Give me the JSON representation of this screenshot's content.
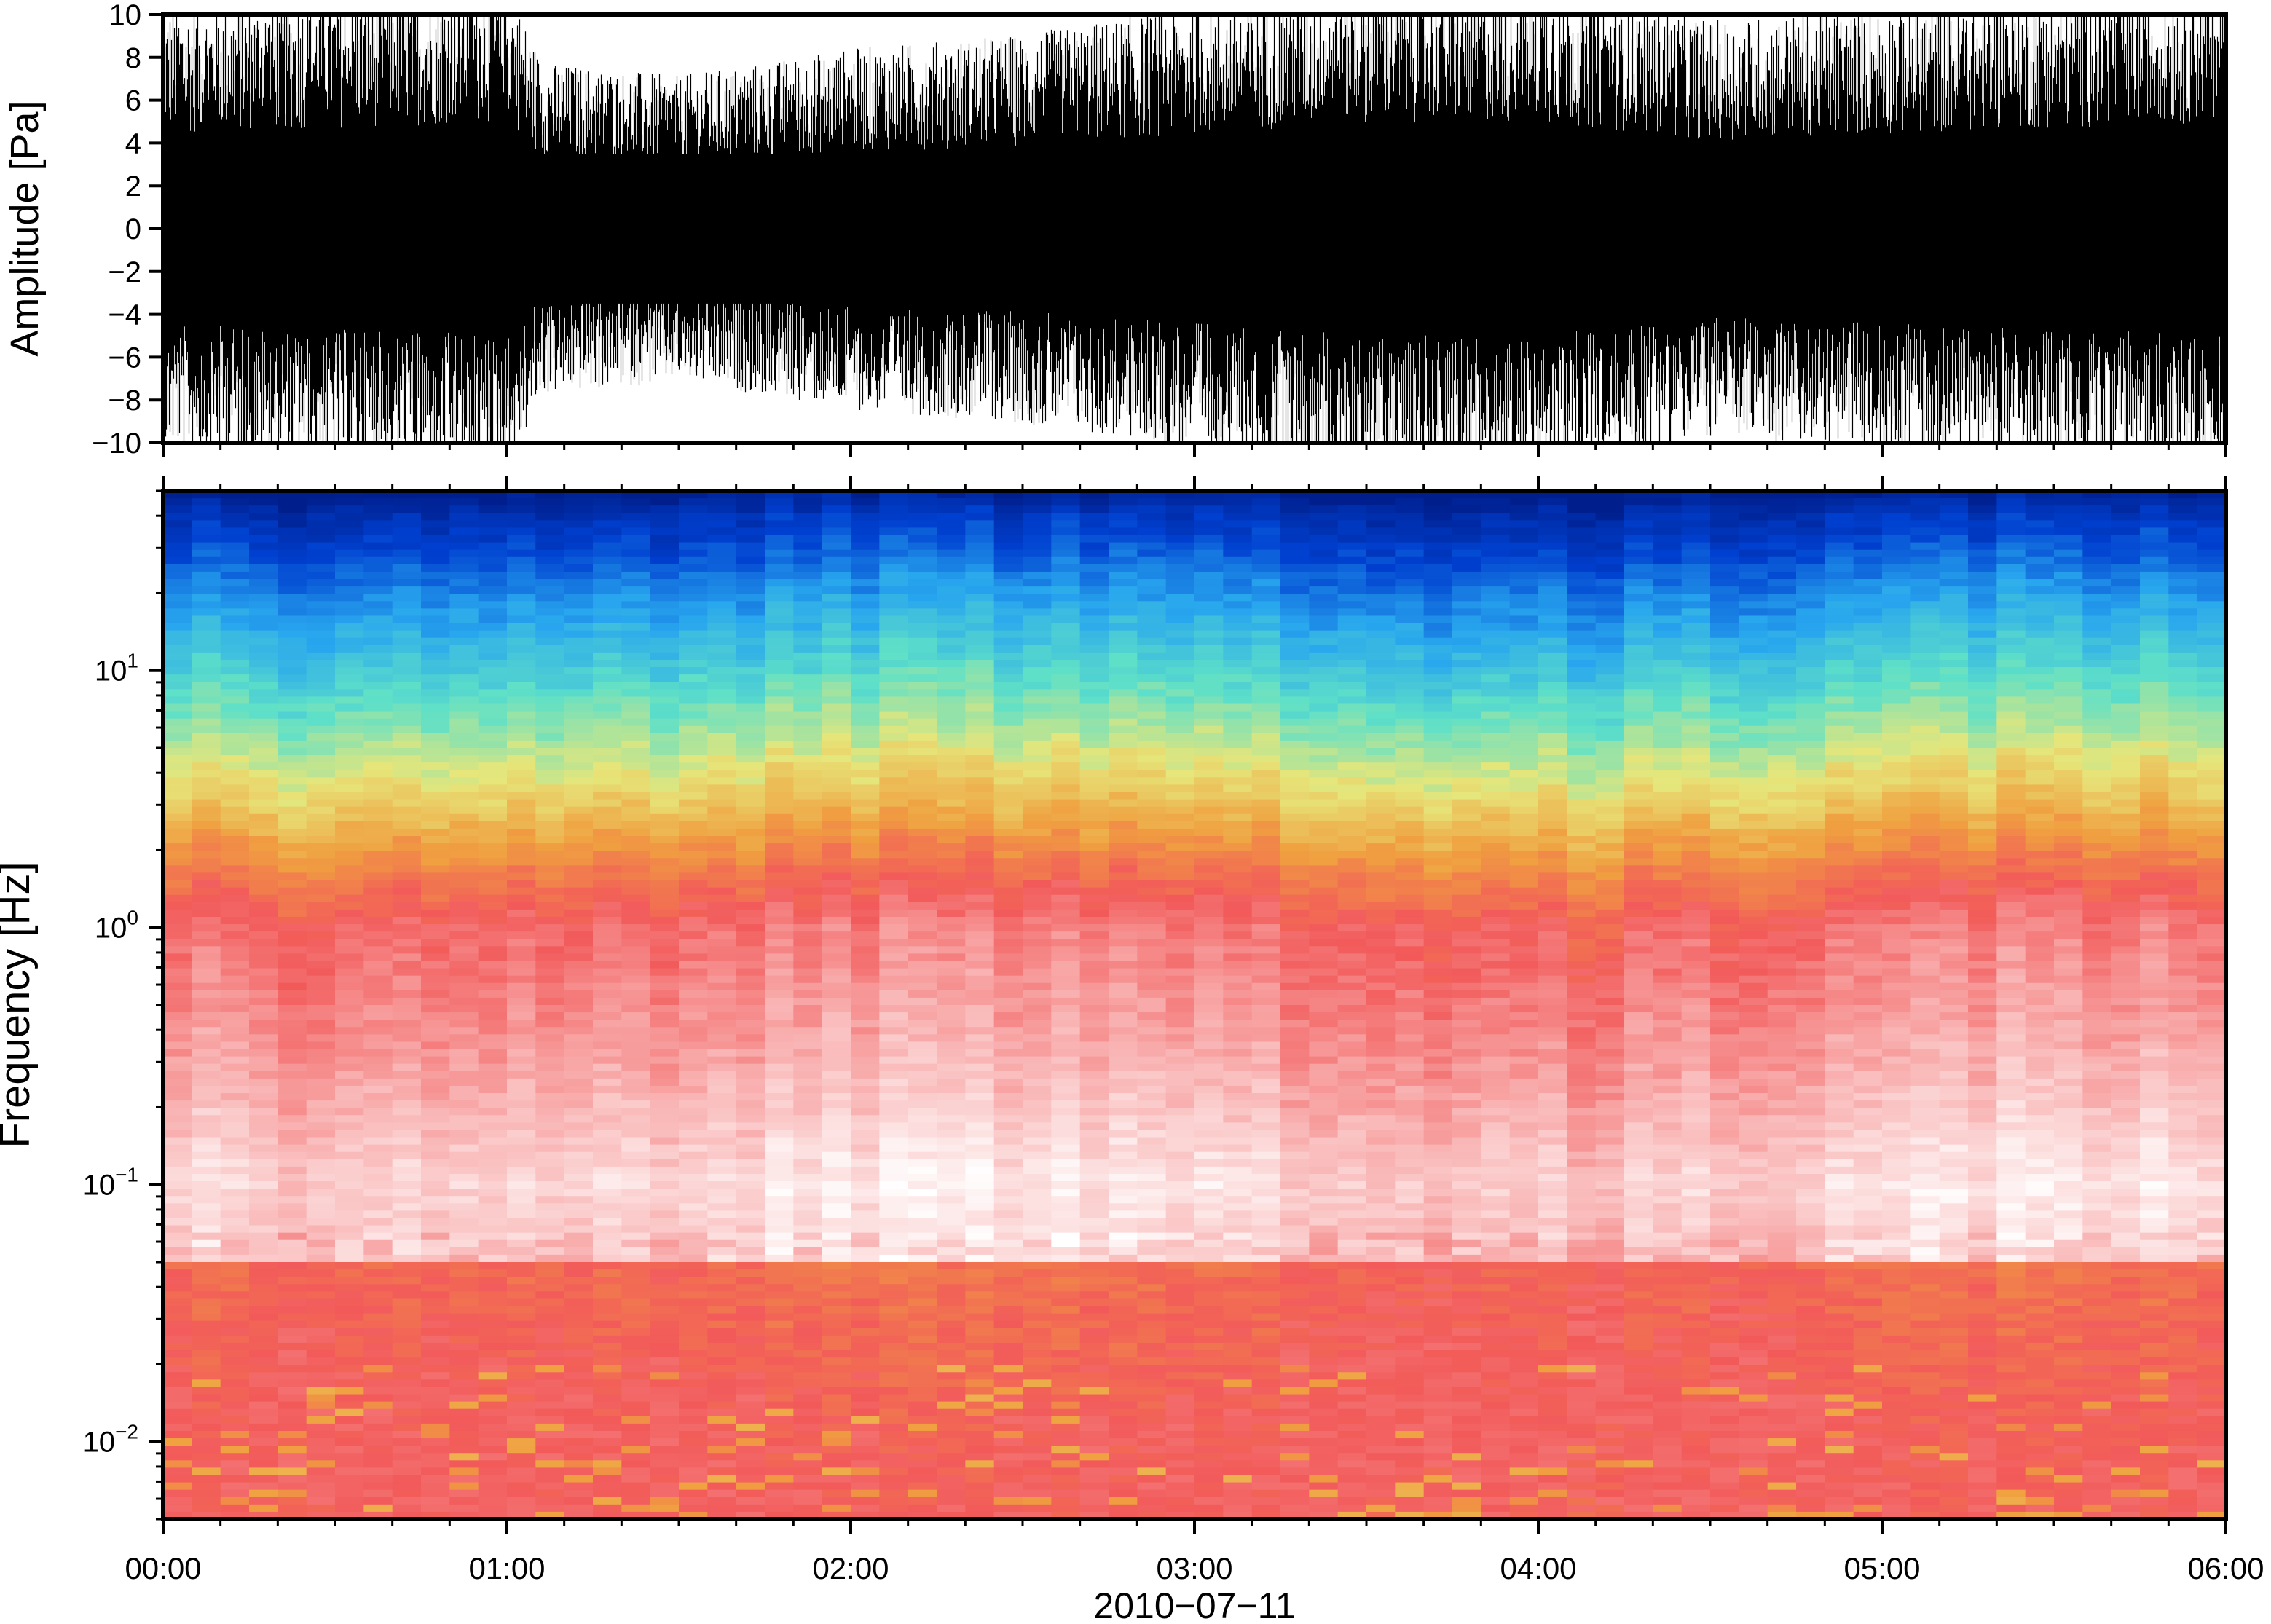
{
  "chart_data": [
    {
      "type": "line",
      "panel": "waveform",
      "title": "",
      "xlabel": "",
      "ylabel": "Amplitude [Pa]",
      "ylim": [
        -10,
        10
      ],
      "xlim": [
        "2010-07-11 00:00",
        "2010-07-11 06:00"
      ],
      "ytick_labels": [
        "10",
        "8",
        "6",
        "4",
        "2",
        "0",
        "−2",
        "−4",
        "−6",
        "−8",
        "−10"
      ],
      "ytick_values": [
        10,
        8,
        6,
        4,
        2,
        0,
        -2,
        -4,
        -6,
        -8,
        -10
      ],
      "x_hours": [
        0.0,
        0.5,
        1.0,
        1.1,
        1.5,
        2.0,
        2.5,
        3.0,
        3.5,
        4.0,
        4.5,
        5.0,
        5.5,
        6.0
      ],
      "envelope_pa": [
        8.0,
        8.5,
        9.0,
        6.0,
        5.5,
        6.5,
        7.0,
        8.0,
        9.0,
        9.0,
        7.5,
        8.0,
        8.5,
        9.0
      ],
      "color": "#000000"
    },
    {
      "type": "heatmap",
      "panel": "spectrogram",
      "title": "",
      "xlabel": "2010−07−11",
      "ylabel": "Frequency [Hz]",
      "y_scale": "log",
      "ylim": [
        0.005,
        50
      ],
      "xlim": [
        "2010-07-11 00:00",
        "2010-07-11 06:00"
      ],
      "ytick_values": [
        0.01,
        0.1,
        1,
        10
      ],
      "ytick_labels": [
        {
          "base": "10",
          "exp": "−2"
        },
        {
          "base": "10",
          "exp": "−1"
        },
        {
          "base": "10",
          "exp": "0"
        },
        {
          "base": "10",
          "exp": "1"
        }
      ],
      "xtick_labels": [
        "00:00",
        "01:00",
        "02:00",
        "03:00",
        "04:00",
        "05:00",
        "06:00"
      ],
      "xtick_hours": [
        0,
        1,
        2,
        3,
        4,
        5,
        6
      ],
      "colormap": [
        "#ffffff",
        "#f9b4b4",
        "#f25a5a",
        "#f0a040",
        "#e6e67a",
        "#5ee0c8",
        "#28a6ee",
        "#0040d0",
        "#001e8c"
      ],
      "profile_log10_freq": [
        -2.3,
        -2.0,
        -1.5,
        -1.0,
        -0.5,
        0.0,
        0.2,
        0.5,
        0.8,
        1.0,
        1.3,
        1.6,
        1.7
      ],
      "profile_colormap_level": [
        0.2,
        0.18,
        0.12,
        0.06,
        0.15,
        0.22,
        0.3,
        0.45,
        0.58,
        0.66,
        0.78,
        0.92,
        1.0
      ]
    }
  ]
}
